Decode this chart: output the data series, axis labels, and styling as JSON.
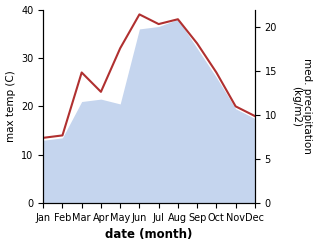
{
  "months": [
    "Jan",
    "Feb",
    "Mar",
    "Apr",
    "May",
    "Jun",
    "Jul",
    "Aug",
    "Sep",
    "Oct",
    "Nov",
    "Dec"
  ],
  "temp": [
    13.5,
    14.0,
    27.0,
    23.0,
    32.0,
    39.0,
    37.0,
    38.0,
    33.0,
    27.0,
    20.0,
    18.0
  ],
  "precip_left_scale": [
    13.0,
    13.5,
    21.0,
    21.5,
    20.5,
    36.0,
    36.5,
    38.0,
    32.0,
    26.0,
    19.5,
    17.5
  ],
  "temp_color": "#b03030",
  "precip_fill_color": "#c5d5ee",
  "background_color": "#ffffff",
  "ylabel_left": "max temp (C)",
  "ylabel_right": "med. precipitation\n(kg/m2)",
  "xlabel": "date (month)",
  "ylim_left": [
    0,
    40
  ],
  "ylim_right": [
    0,
    22
  ],
  "yticks_left": [
    0,
    10,
    20,
    30,
    40
  ],
  "yticks_right": [
    0,
    5,
    10,
    15,
    20
  ],
  "label_fontsize": 7.5,
  "tick_fontsize": 7.0,
  "xlabel_fontsize": 8.5
}
